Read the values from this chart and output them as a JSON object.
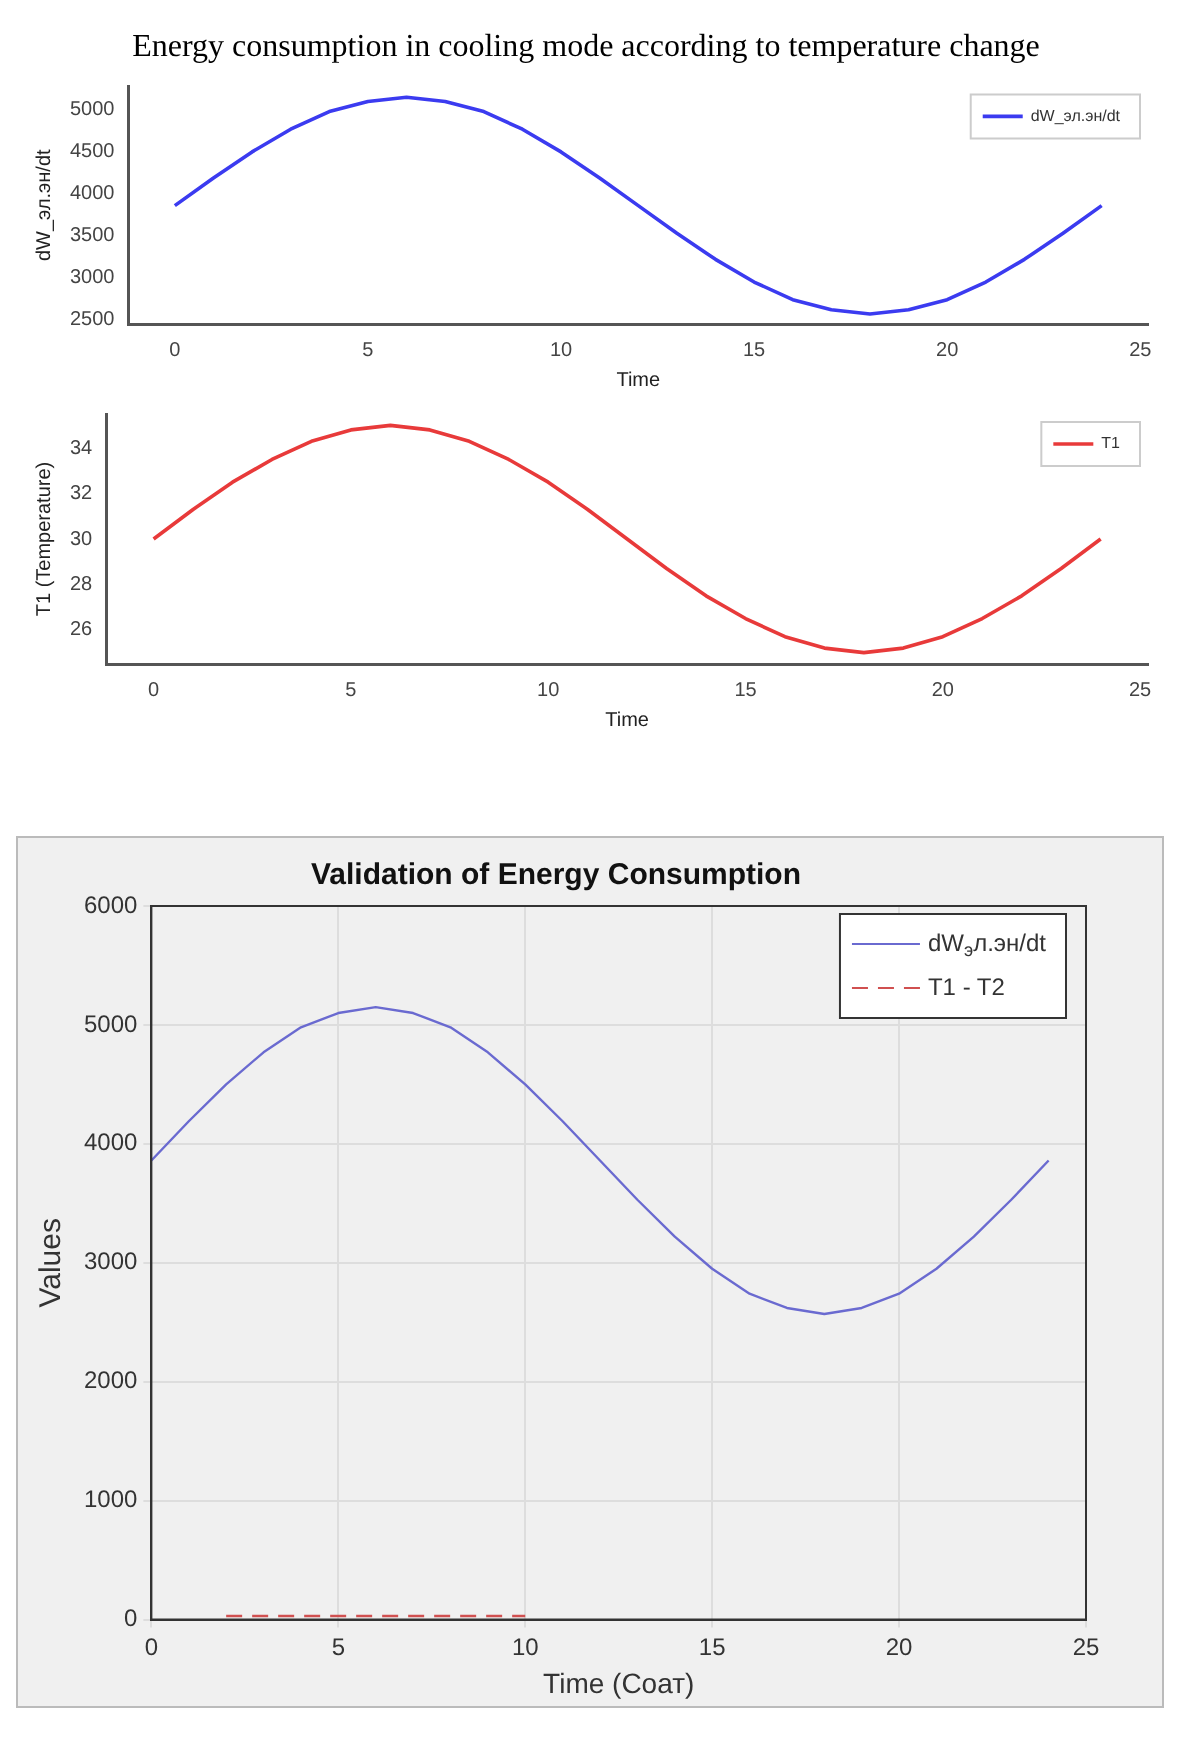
{
  "chart_data": [
    {
      "type": "line",
      "title": "Energy consumption in cooling mode according to temperature change",
      "xlabel": "Time",
      "ylabel": "dW_эл.эн/dt",
      "x": [
        0,
        1,
        2,
        3,
        4,
        5,
        6,
        7,
        8,
        9,
        10,
        11,
        12,
        13,
        14,
        15,
        16,
        17,
        18,
        19,
        20,
        21,
        22,
        23,
        24
      ],
      "series": [
        {
          "name": "dW_эл.эн/dt",
          "color": "#3b3bf0",
          "values": [
            3860,
            4190,
            4500,
            4770,
            4980,
            5100,
            5150,
            5100,
            4980,
            4770,
            4500,
            4190,
            3860,
            3530,
            3220,
            2950,
            2740,
            2620,
            2570,
            2620,
            2740,
            2950,
            3220,
            3530,
            3860
          ]
        }
      ],
      "xlim": [
        -1.2,
        25.2
      ],
      "xticks": [
        0,
        5,
        10,
        15,
        20,
        25
      ],
      "ylim": [
        2450,
        5280
      ],
      "yticks": [
        2500,
        3000,
        3500,
        4000,
        4500,
        5000
      ],
      "grid": false,
      "legend": "top right"
    },
    {
      "type": "line",
      "xlabel": "Time",
      "ylabel": "T1 (Temperature)",
      "x": [
        0,
        1,
        2,
        3,
        4,
        5,
        6,
        7,
        8,
        9,
        10,
        11,
        12,
        13,
        14,
        15,
        16,
        17,
        18,
        19,
        20,
        21,
        22,
        23,
        24
      ],
      "series": [
        {
          "name": "T1",
          "color": "#e83a3a",
          "values": [
            30,
            31.3,
            32.5,
            33.5,
            34.3,
            34.8,
            35,
            34.8,
            34.3,
            33.5,
            32.5,
            31.3,
            30,
            28.7,
            27.5,
            26.5,
            25.7,
            25.2,
            25,
            25.2,
            25.7,
            26.5,
            27.5,
            28.7,
            30
          ]
        }
      ],
      "xlim": [
        -1.2,
        25.2
      ],
      "xticks": [
        0,
        5,
        10,
        15,
        20,
        25
      ],
      "ylim": [
        24.5,
        35.5
      ],
      "yticks": [
        26,
        28,
        30,
        32,
        34
      ],
      "grid": false,
      "legend": "top right"
    },
    {
      "type": "line",
      "title": "Validation of Energy Consumption",
      "xlabel": "Time (Соат)",
      "ylabel": "Values",
      "x": [
        0,
        1,
        2,
        3,
        4,
        5,
        6,
        7,
        8,
        9,
        10,
        11,
        12,
        13,
        14,
        15,
        16,
        17,
        18,
        19,
        20,
        21,
        22,
        23,
        24
      ],
      "series": [
        {
          "name": "dW$_{э}$л.эн/dt",
          "color": "#6a6ad0",
          "values": [
            3860,
            4190,
            4500,
            4770,
            4980,
            5100,
            5150,
            5100,
            4980,
            4770,
            4500,
            4190,
            3860,
            3530,
            3220,
            2950,
            2740,
            2620,
            2570,
            2620,
            2740,
            2950,
            3220,
            3530,
            3860
          ]
        },
        {
          "name": "T1 - T2",
          "color": "#d05050",
          "line_style": "dashed",
          "values": [
            null,
            null,
            30,
            30,
            30,
            30,
            30,
            30,
            30,
            30,
            30,
            null,
            null,
            null,
            null,
            null,
            null,
            null,
            null,
            null,
            null,
            null,
            null,
            null,
            null
          ]
        }
      ],
      "xlim": [
        0,
        25
      ],
      "xticks": [
        0,
        5,
        10,
        15,
        20,
        25
      ],
      "ylim": [
        0,
        6000
      ],
      "yticks": [
        0,
        1000,
        2000,
        3000,
        4000,
        5000,
        6000
      ],
      "grid": true,
      "legend": "top right"
    }
  ]
}
